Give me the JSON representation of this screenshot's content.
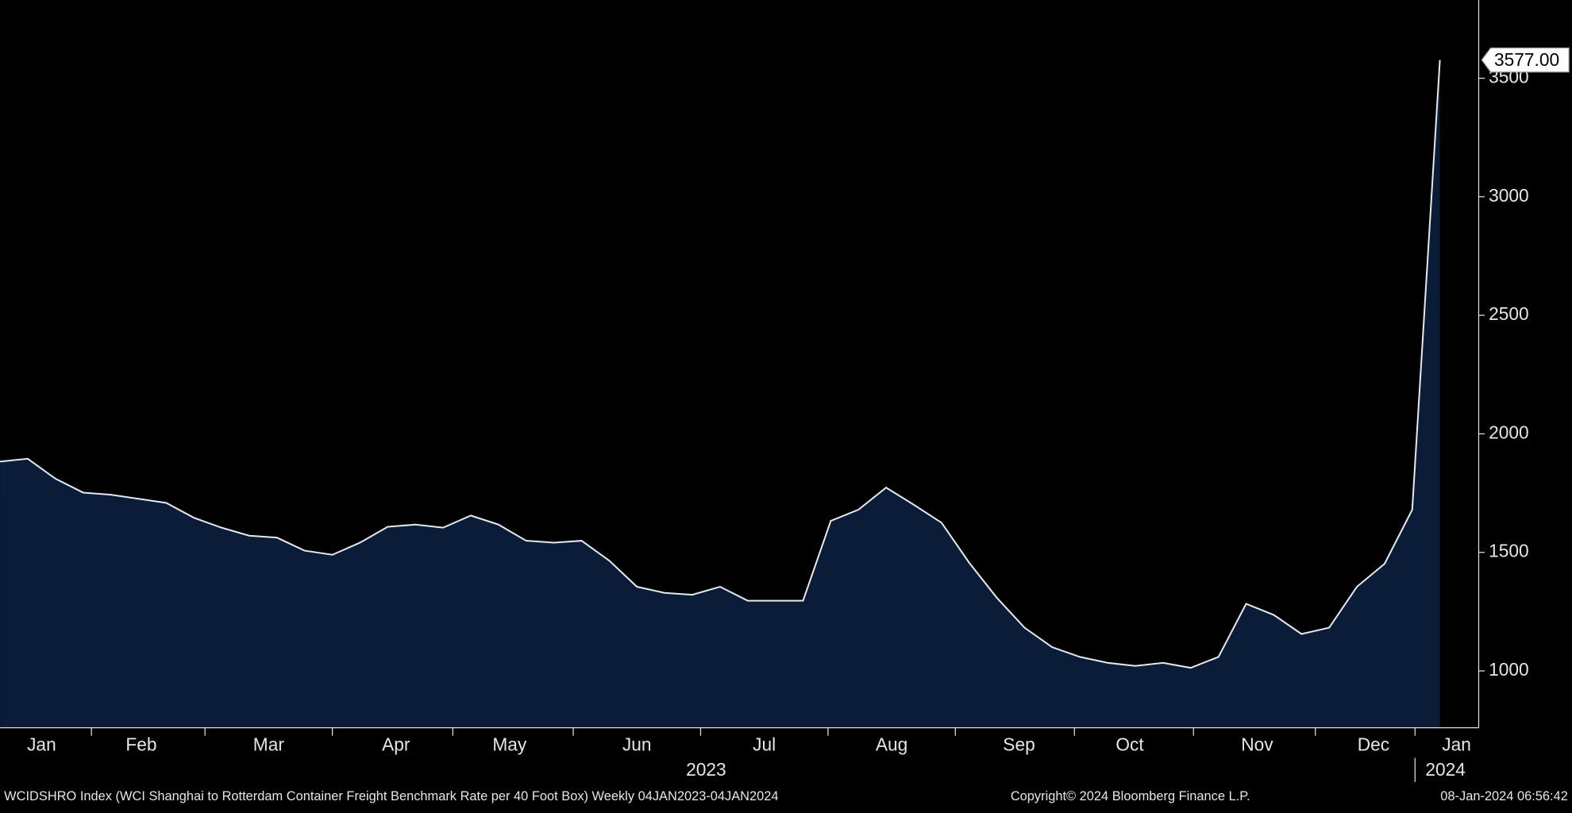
{
  "chart_data": {
    "type": "area",
    "values": [
      1883,
      1895,
      1811,
      1752,
      1743,
      1726,
      1709,
      1646,
      1604,
      1570,
      1562,
      1507,
      1490,
      1541,
      1608,
      1617,
      1604,
      1655,
      1617,
      1549,
      1541,
      1549,
      1465,
      1355,
      1329,
      1321,
      1355,
      1296,
      1296,
      1296,
      1633,
      1680,
      1773,
      1701,
      1625,
      1456,
      1308,
      1182,
      1100,
      1059,
      1034,
      1021,
      1034,
      1013,
      1059,
      1283,
      1236,
      1156,
      1182,
      1355,
      1452,
      1680,
      3577
    ],
    "value_labels": {
      "52": "3577.00"
    },
    "color": "#0b1c38",
    "line_color": "#e8e8e8",
    "xlim": [
      0,
      53.4
    ],
    "xticks": [
      {
        "value": 1.5,
        "label": "Jan"
      },
      {
        "value": 5.1,
        "label": "Feb"
      },
      {
        "value": 9.7,
        "label": "Mar"
      },
      {
        "value": 14.3,
        "label": "Apr"
      },
      {
        "value": 18.4,
        "label": "May"
      },
      {
        "value": 23,
        "label": "Jun"
      },
      {
        "value": 27.6,
        "label": "Jul"
      },
      {
        "value": 32.2,
        "label": "Aug"
      },
      {
        "value": 36.8,
        "label": "Sep"
      },
      {
        "value": 40.8,
        "label": "Oct"
      },
      {
        "value": 45.4,
        "label": "Nov"
      },
      {
        "value": 49.6,
        "label": "Dec"
      },
      {
        "value": 52.6,
        "label": "Jan"
      }
    ],
    "years": [
      {
        "value": 25.5,
        "label": "2023"
      },
      {
        "value": 52.2,
        "label": "2024"
      }
    ],
    "ylim": [
      760,
      3830
    ],
    "yticks": [
      1000,
      1500,
      2000,
      2500,
      3000,
      3500
    ],
    "footer_left": "WCIDSHRO Index (WCI Shanghai to Rotterdam Container Freight Benchmark Rate per 40 Foot Box)  Weekly 04JAN2023-04JAN2024",
    "footer_center": "Copyright© 2024 Bloomberg Finance L.P.",
    "footer_right": "08-Jan-2024 06:56:42"
  }
}
